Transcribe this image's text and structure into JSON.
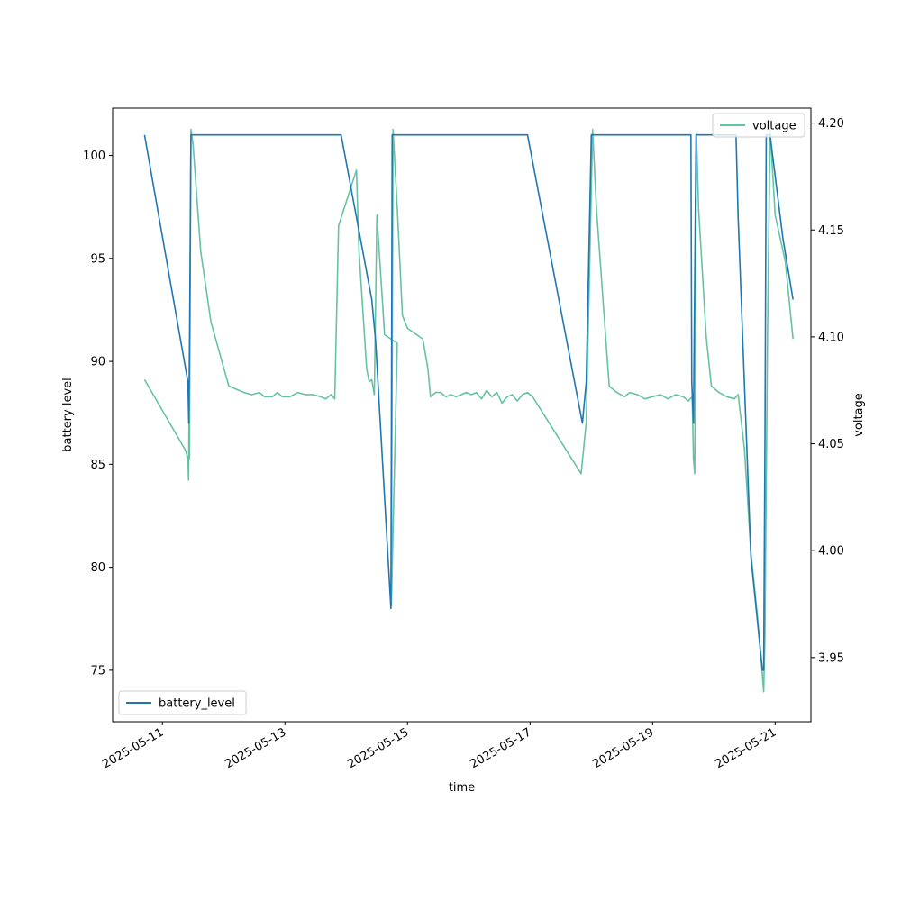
{
  "colors": {
    "battery_level": "#1f77b4",
    "voltage": "#66c2a5"
  },
  "chart_data": {
    "type": "line",
    "title": "",
    "xlabel": "time",
    "ylabel_left": "battery level",
    "ylabel_right": "voltage",
    "x_axis_type": "date",
    "xlim": [
      "2025-05-10T04:30",
      "2025-05-21T14:00"
    ],
    "ylim_left": [
      72.5,
      102.3
    ],
    "ylim_right": [
      3.92,
      4.207
    ],
    "x_ticks": [
      "2025-05-11",
      "2025-05-13",
      "2025-05-15",
      "2025-05-17",
      "2025-05-19",
      "2025-05-21"
    ],
    "y_ticks_left": [
      75,
      80,
      85,
      90,
      95,
      100
    ],
    "y_ticks_right": [
      3.95,
      4.0,
      4.05,
      4.1,
      4.15,
      4.2
    ],
    "y_tick_labels_left": [
      "75",
      "80",
      "85",
      "90",
      "95",
      "100"
    ],
    "y_tick_labels_right": [
      "3.95",
      "4.00",
      "4.05",
      "4.10",
      "4.15",
      "4.20"
    ],
    "grid": false,
    "legends": [
      {
        "axis": "left",
        "placement": "lower-left",
        "entries": [
          "battery_level"
        ]
      },
      {
        "axis": "right",
        "placement": "upper-right",
        "entries": [
          "voltage"
        ]
      }
    ],
    "series": [
      {
        "name": "battery_level",
        "axis": "left",
        "points": [
          [
            "2025-05-10T17:00",
            101
          ],
          [
            "2025-05-11T10:00",
            89
          ],
          [
            "2025-05-11T10:20",
            87
          ],
          [
            "2025-05-11T10:40",
            91.5
          ],
          [
            "2025-05-11T11:10",
            101
          ],
          [
            "2025-05-13T22:00",
            101
          ],
          [
            "2025-05-14T10:00",
            93
          ],
          [
            "2025-05-14T11:30",
            91
          ],
          [
            "2025-05-14T17:30",
            78
          ],
          [
            "2025-05-14T18:00",
            101
          ],
          [
            "2025-05-16T23:00",
            101
          ],
          [
            "2025-05-17T20:30",
            87
          ],
          [
            "2025-05-17T22:00",
            89
          ],
          [
            "2025-05-18T00:00",
            101
          ],
          [
            "2025-05-19T15:00",
            101
          ],
          [
            "2025-05-19T15:20",
            89
          ],
          [
            "2025-05-19T16:00",
            87
          ],
          [
            "2025-05-19T17:00",
            101
          ],
          [
            "2025-05-20T08:40",
            101
          ],
          [
            "2025-05-20T09:30",
            97
          ],
          [
            "2025-05-20T14:30",
            80.5
          ],
          [
            "2025-05-20T19:00",
            75
          ],
          [
            "2025-05-20T19:30",
            75
          ],
          [
            "2025-05-20T20:00",
            86
          ],
          [
            "2025-05-20T20:30",
            101
          ],
          [
            "2025-05-20T22:00",
            101
          ],
          [
            "2025-05-21T03:00",
            96
          ],
          [
            "2025-05-21T07:00",
            93
          ]
        ]
      },
      {
        "name": "voltage",
        "axis": "right",
        "points": [
          [
            "2025-05-10T17:00",
            4.08
          ],
          [
            "2025-05-11T09:00",
            4.047
          ],
          [
            "2025-05-11T10:00",
            4.043
          ],
          [
            "2025-05-11T10:15",
            4.033
          ],
          [
            "2025-05-11T10:25",
            4.06
          ],
          [
            "2025-05-11T10:35",
            4.043
          ],
          [
            "2025-05-11T11:10",
            4.197
          ],
          [
            "2025-05-11T12:00",
            4.19
          ],
          [
            "2025-05-11T15:00",
            4.14
          ],
          [
            "2025-05-11T19:00",
            4.107
          ],
          [
            "2025-05-12T02:00",
            4.077
          ],
          [
            "2025-05-12T08:00",
            4.074
          ],
          [
            "2025-05-12T11:00",
            4.073
          ],
          [
            "2025-05-12T14:00",
            4.074
          ],
          [
            "2025-05-12T16:00",
            4.072
          ],
          [
            "2025-05-12T19:00",
            4.072
          ],
          [
            "2025-05-12T21:00",
            4.074
          ],
          [
            "2025-05-12T23:00",
            4.072
          ],
          [
            "2025-05-13T02:00",
            4.072
          ],
          [
            "2025-05-13T05:00",
            4.074
          ],
          [
            "2025-05-13T08:00",
            4.073
          ],
          [
            "2025-05-13T11:00",
            4.073
          ],
          [
            "2025-05-13T14:00",
            4.072
          ],
          [
            "2025-05-13T16:00",
            4.071
          ],
          [
            "2025-05-13T18:00",
            4.073
          ],
          [
            "2025-05-13T19:30",
            4.071
          ],
          [
            "2025-05-13T21:00",
            4.152
          ],
          [
            "2025-05-14T04:00",
            4.178
          ],
          [
            "2025-05-14T05:00",
            4.14
          ],
          [
            "2025-05-14T08:00",
            4.085
          ],
          [
            "2025-05-14T09:00",
            4.079
          ],
          [
            "2025-05-14T10:00",
            4.08
          ],
          [
            "2025-05-14T11:00",
            4.073
          ],
          [
            "2025-05-14T12:00",
            4.157
          ],
          [
            "2025-05-14T14:00",
            4.12
          ],
          [
            "2025-05-14T15:00",
            4.101
          ],
          [
            "2025-05-14T20:00",
            4.097
          ],
          [
            "2025-05-14T17:40",
            3.974
          ],
          [
            "2025-05-14T18:20",
            4.197
          ],
          [
            "2025-05-14T20:00",
            4.16
          ],
          [
            "2025-05-14T22:00",
            4.11
          ],
          [
            "2025-05-15T00:00",
            4.104
          ],
          [
            "2025-05-15T06:00",
            4.099
          ],
          [
            "2025-05-15T08:00",
            4.085
          ],
          [
            "2025-05-15T09:00",
            4.072
          ],
          [
            "2025-05-15T11:00",
            4.074
          ],
          [
            "2025-05-15T13:00",
            4.074
          ],
          [
            "2025-05-15T15:00",
            4.072
          ],
          [
            "2025-05-15T17:00",
            4.073
          ],
          [
            "2025-05-15T19:00",
            4.072
          ],
          [
            "2025-05-15T21:00",
            4.073
          ],
          [
            "2025-05-15T23:00",
            4.074
          ],
          [
            "2025-05-16T01:00",
            4.073
          ],
          [
            "2025-05-16T03:00",
            4.074
          ],
          [
            "2025-05-16T05:00",
            4.071
          ],
          [
            "2025-05-16T07:00",
            4.075
          ],
          [
            "2025-05-16T09:00",
            4.072
          ],
          [
            "2025-05-16T11:00",
            4.074
          ],
          [
            "2025-05-16T13:00",
            4.069
          ],
          [
            "2025-05-16T15:00",
            4.072
          ],
          [
            "2025-05-16T17:00",
            4.073
          ],
          [
            "2025-05-16T19:00",
            4.07
          ],
          [
            "2025-05-16T21:00",
            4.073
          ],
          [
            "2025-05-16T23:00",
            4.074
          ],
          [
            "2025-05-17T01:00",
            4.072
          ],
          [
            "2025-05-17T20:00",
            4.036
          ],
          [
            "2025-05-17T22:00",
            4.06
          ],
          [
            "2025-05-18T00:30",
            4.197
          ],
          [
            "2025-05-18T02:00",
            4.16
          ],
          [
            "2025-05-18T05:00",
            4.11
          ],
          [
            "2025-05-18T07:00",
            4.077
          ],
          [
            "2025-05-18T10:00",
            4.074
          ],
          [
            "2025-05-18T13:00",
            4.072
          ],
          [
            "2025-05-18T15:00",
            4.074
          ],
          [
            "2025-05-18T18:00",
            4.073
          ],
          [
            "2025-05-18T21:00",
            4.071
          ],
          [
            "2025-05-19T00:00",
            4.072
          ],
          [
            "2025-05-19T03:00",
            4.073
          ],
          [
            "2025-05-19T06:00",
            4.071
          ],
          [
            "2025-05-19T09:00",
            4.073
          ],
          [
            "2025-05-19T12:00",
            4.072
          ],
          [
            "2025-05-19T14:00",
            4.07
          ],
          [
            "2025-05-19T15:30",
            4.072
          ],
          [
            "2025-05-19T16:00",
            4.043
          ],
          [
            "2025-05-19T16:30",
            4.036
          ],
          [
            "2025-05-19T17:10",
            4.195
          ],
          [
            "2025-05-19T18:00",
            4.16
          ],
          [
            "2025-05-19T21:00",
            4.1
          ],
          [
            "2025-05-19T23:00",
            4.077
          ],
          [
            "2025-05-20T02:00",
            4.074
          ],
          [
            "2025-05-20T05:00",
            4.072
          ],
          [
            "2025-05-20T08:00",
            4.071
          ],
          [
            "2025-05-20T09:30",
            4.073
          ],
          [
            "2025-05-20T12:00",
            4.047
          ],
          [
            "2025-05-20T14:30",
            3.999
          ],
          [
            "2025-05-20T17:00",
            3.97
          ],
          [
            "2025-05-20T19:00",
            3.942
          ],
          [
            "2025-05-20T19:30",
            3.934
          ],
          [
            "2025-05-20T20:00",
            3.96
          ],
          [
            "2025-05-20T21:00",
            4.1
          ],
          [
            "2025-05-20T22:00",
            4.197
          ],
          [
            "2025-05-21T00:00",
            4.157
          ],
          [
            "2025-05-21T04:00",
            4.135
          ],
          [
            "2025-05-21T07:00",
            4.099
          ]
        ]
      }
    ]
  }
}
